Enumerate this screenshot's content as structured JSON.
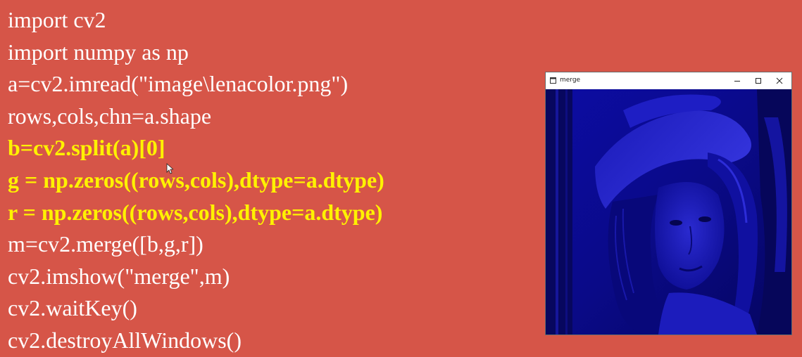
{
  "code_lines": [
    {
      "text": "import cv2",
      "highlight": false
    },
    {
      "text": "import numpy as np",
      "highlight": false
    },
    {
      "text": "a=cv2.imread(\"image\\lenacolor.png\")",
      "highlight": false
    },
    {
      "text": "rows,cols,chn=a.shape",
      "highlight": false
    },
    {
      "text": "b=cv2.split(a)[0]",
      "highlight": true
    },
    {
      "text": "g = np.zeros((rows,cols),dtype=a.dtype)",
      "highlight": true
    },
    {
      "text": "r = np.zeros((rows,cols),dtype=a.dtype)",
      "highlight": true
    },
    {
      "text": "m=cv2.merge([b,g,r])",
      "highlight": false
    },
    {
      "text": "cv2.imshow(\"merge\",m)",
      "highlight": false
    },
    {
      "text": "cv2.waitKey()",
      "highlight": false
    },
    {
      "text": "cv2.destroyAllWindows()",
      "highlight": false
    }
  ],
  "window": {
    "title": "merge",
    "icon": "app-window-icon",
    "controls": [
      "minimize-icon",
      "maximize-icon",
      "close-icon"
    ],
    "image_tint": "#0a0a8c"
  },
  "colors": {
    "background": "#d65548",
    "code_text": "#ffffff",
    "highlight_text": "#fff200"
  }
}
